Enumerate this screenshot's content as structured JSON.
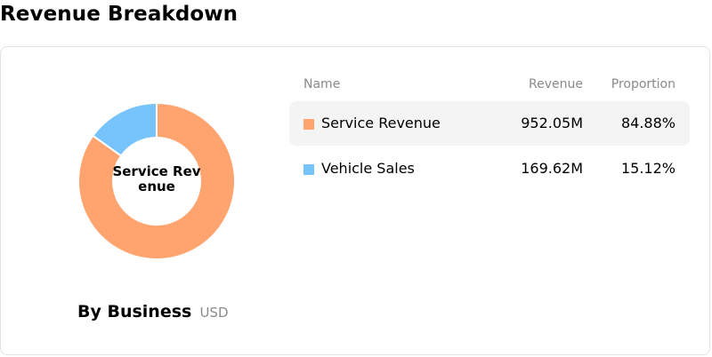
{
  "page": {
    "title": "Revenue Breakdown"
  },
  "donut": {
    "center_label": "Service Revenue"
  },
  "caption": {
    "title": "By Business",
    "unit": "USD"
  },
  "table": {
    "headers": {
      "name": "Name",
      "revenue": "Revenue",
      "proportion": "Proportion"
    },
    "rows": [
      {
        "name": "Service Revenue",
        "revenue": "952.05M",
        "proportion": "84.88%"
      },
      {
        "name": "Vehicle Sales",
        "revenue": "169.62M",
        "proportion": "15.12%"
      }
    ]
  },
  "chart_data": {
    "type": "pie",
    "style": "donut",
    "title": "By Business",
    "unit": "USD",
    "categories": [
      "Service Revenue",
      "Vehicle Sales"
    ],
    "values": [
      952.05,
      169.62
    ],
    "proportions": [
      84.88,
      15.12
    ],
    "colors": [
      "#FFA46E",
      "#77C4FC"
    ],
    "highlighted": "Service Revenue"
  }
}
